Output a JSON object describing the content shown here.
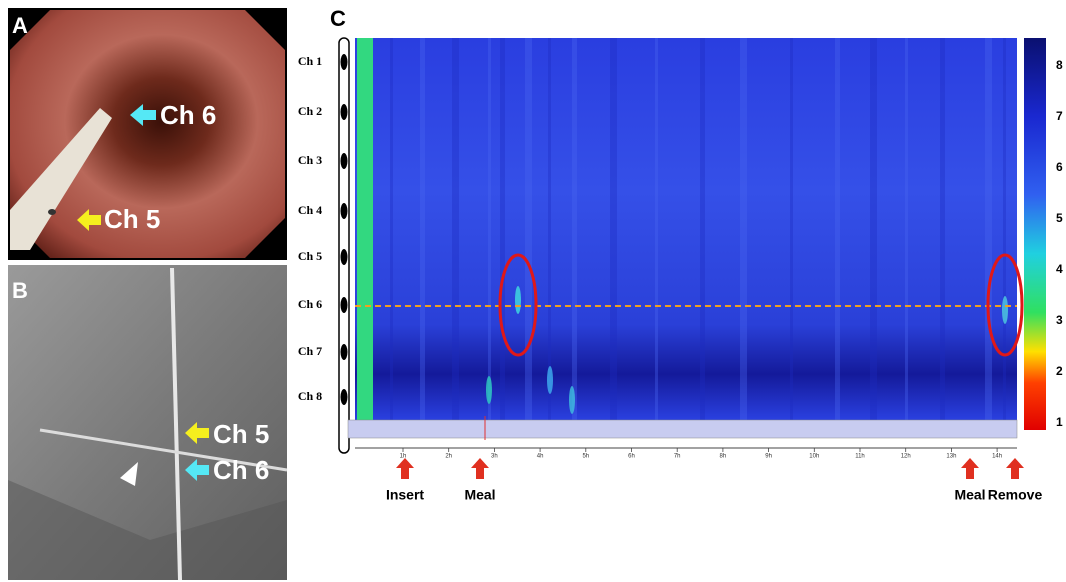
{
  "panel_a": {
    "letter": "A",
    "labels": [
      "Ch 6",
      "Ch 5"
    ]
  },
  "panel_b": {
    "letter": "B",
    "labels": [
      "Ch 5",
      "Ch 6"
    ]
  },
  "panel_c": {
    "letter": "C",
    "channels": [
      "Ch 1",
      "Ch 2",
      "Ch 3",
      "Ch 4",
      "Ch 5",
      "Ch 6",
      "Ch 7",
      "Ch 8"
    ],
    "colorbar_ticks": [
      1,
      2,
      3,
      4,
      5,
      6,
      7,
      8
    ],
    "time_ticks": [
      "1h",
      "2h",
      "3h",
      "4h",
      "5h",
      "6h",
      "7h",
      "8h",
      "9h",
      "10h",
      "11h",
      "12h",
      "13h",
      "14h"
    ],
    "events": [
      "Insert",
      "Meal",
      "Meal",
      "Remove"
    ]
  }
}
